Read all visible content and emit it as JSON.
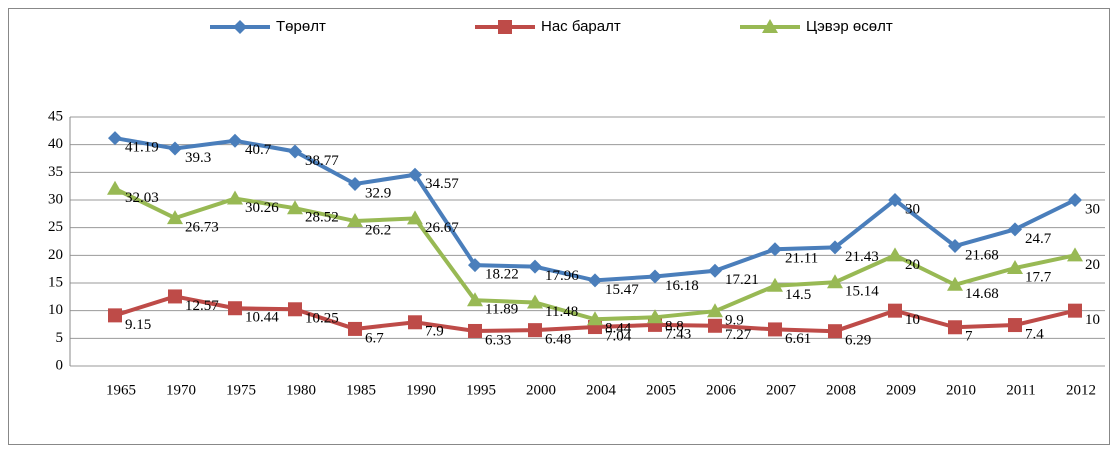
{
  "chart_data": {
    "type": "line",
    "categories": [
      "1965",
      "1970",
      "1975",
      "1980",
      "1985",
      "1990",
      "1995",
      "2000",
      "2004",
      "2005",
      "2006",
      "2007",
      "2008",
      "2009",
      "2010",
      "2011",
      "2012"
    ],
    "series": [
      {
        "name": "Төрөлт",
        "color": "#4a7ebb",
        "marker": "diamond",
        "values": [
          41.19,
          39.3,
          40.7,
          38.77,
          32.9,
          34.57,
          18.22,
          17.96,
          15.47,
          16.18,
          17.21,
          21.11,
          21.43,
          30,
          21.68,
          24.7,
          30
        ]
      },
      {
        "name": "Нас баралт",
        "color": "#be4b48",
        "marker": "square",
        "values": [
          9.15,
          12.57,
          10.44,
          10.25,
          6.7,
          7.9,
          6.33,
          6.48,
          7.04,
          7.43,
          7.27,
          6.61,
          6.29,
          10,
          7,
          7.4,
          10
        ]
      },
      {
        "name": "Цэвэр өсөлт",
        "color": "#98b954",
        "marker": "triangle",
        "values": [
          32.03,
          26.73,
          30.26,
          28.52,
          26.2,
          26.67,
          11.89,
          11.48,
          8.44,
          8.8,
          9.9,
          14.5,
          15.14,
          20,
          14.68,
          17.7,
          20
        ]
      }
    ],
    "ylim": [
      0,
      45
    ],
    "yticks": [
      0,
      5,
      10,
      15,
      20,
      25,
      30,
      35,
      40,
      45
    ],
    "grid": true,
    "legend": "top"
  }
}
